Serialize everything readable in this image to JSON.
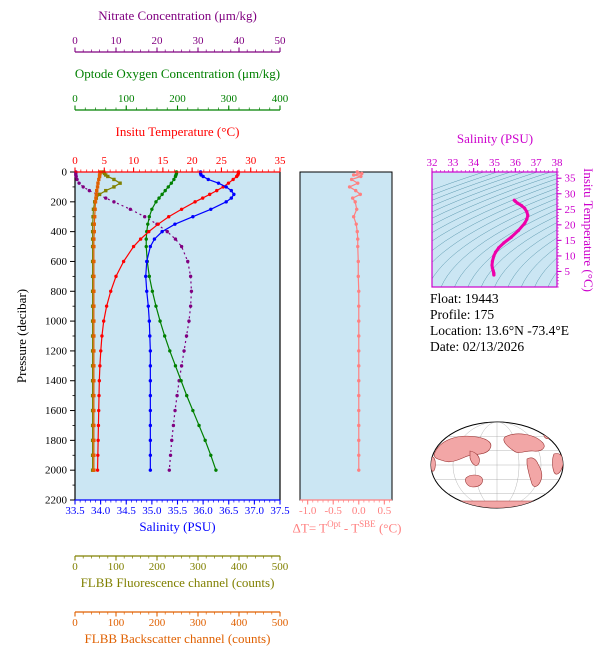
{
  "colors": {
    "plot_bg": "#cbe6f3",
    "contour": "#4d8fa6",
    "land": "#f2a6a6",
    "coast": "#993333"
  },
  "info": {
    "lines": [
      "Float:  19443",
      "Profile:  175",
      "Location:  13.6°N -73.4°E",
      "Date:  02/13/2026"
    ]
  },
  "chart_data": [
    {
      "id": "profiles",
      "type": "line",
      "y_axis": {
        "label": "Pressure (decibar)",
        "range": [
          0,
          2200
        ],
        "ticks": [
          "0",
          "200",
          "400",
          "600",
          "800",
          "1000",
          "1200",
          "1400",
          "1600",
          "1800",
          "2000",
          "2200"
        ]
      },
      "x_axes": [
        {
          "id": "nitrate",
          "label": "Nitrate Concentration (μm/kg)",
          "color": "#800080",
          "range": [
            0,
            50
          ],
          "ticks": [
            "0",
            "10",
            "20",
            "30",
            "40",
            "50"
          ]
        },
        {
          "id": "oxygen",
          "label": "Optode Oxygen Concentration (μm/kg)",
          "color": "#008000",
          "range": [
            0,
            400
          ],
          "ticks": [
            "0",
            "100",
            "200",
            "300",
            "400"
          ]
        },
        {
          "id": "temperature",
          "label": "Insitu Temperature (°C)",
          "color": "#ff0000",
          "range": [
            0,
            35
          ],
          "ticks": [
            "0",
            "5",
            "10",
            "15",
            "20",
            "25",
            "30",
            "35"
          ]
        },
        {
          "id": "salinity",
          "label": "Salinity (PSU)",
          "color": "#0000ff",
          "range": [
            33.5,
            37.5
          ],
          "ticks": [
            "33.5",
            "34.0",
            "34.5",
            "35.0",
            "35.5",
            "36.0",
            "36.5",
            "37.0",
            "37.5"
          ]
        },
        {
          "id": "fluorescence",
          "label": "FLBB Fluorescence channel (counts)",
          "color": "#808000",
          "range": [
            0,
            500
          ],
          "ticks": [
            "0",
            "100",
            "200",
            "300",
            "400",
            "500"
          ]
        },
        {
          "id": "backscatter",
          "label": "FLBB Backscatter channel (counts)",
          "color": "#e06000",
          "range": [
            0,
            500
          ],
          "ticks": [
            "0",
            "100",
            "200",
            "300",
            "400",
            "500"
          ]
        }
      ],
      "pressure_levels": [
        0,
        10,
        20,
        30,
        50,
        75,
        100,
        125,
        150,
        175,
        200,
        250,
        300,
        350,
        400,
        450,
        500,
        600,
        700,
        800,
        900,
        1000,
        1100,
        1200,
        1300,
        1400,
        1500,
        1600,
        1700,
        1800,
        1900,
        2000
      ],
      "series": [
        {
          "axis": "nitrate",
          "color": "#800080",
          "marker": "circle",
          "dash": "2 3",
          "values": [
            0.2,
            0.2,
            0.2,
            0.3,
            0.5,
            1.0,
            2.0,
            3.5,
            5.5,
            7.5,
            9.5,
            13.5,
            17.0,
            20.0,
            22.5,
            24.5,
            26.0,
            27.5,
            28.2,
            28.4,
            28.2,
            27.8,
            27.2,
            26.6,
            26.0,
            25.4,
            24.9,
            24.4,
            24.0,
            23.6,
            23.3,
            23.0
          ]
        },
        {
          "axis": "oxygen",
          "color": "#008000",
          "marker": "circle",
          "values": [
            198,
            198,
            197,
            196,
            193,
            188,
            182,
            176,
            170,
            164,
            158,
            150,
            145,
            142,
            140,
            139,
            139,
            141,
            145,
            151,
            158,
            166,
            175,
            185,
            196,
            207,
            218,
            230,
            242,
            254,
            265,
            275
          ]
        },
        {
          "axis": "fluorescence",
          "color": "#808000",
          "marker": "square",
          "values": [
            70,
            72,
            75,
            80,
            95,
            110,
            95,
            75,
            60,
            52,
            48,
            45,
            44,
            43,
            43,
            43,
            43,
            43,
            43,
            43,
            43,
            43,
            43,
            43,
            43,
            43,
            43,
            43,
            43,
            43,
            43,
            43
          ]
        },
        {
          "axis": "backscatter",
          "color": "#e06000",
          "marker": "square",
          "values": [
            62,
            61,
            60,
            60,
            58,
            56,
            55,
            53,
            52,
            51,
            50,
            49,
            48,
            47,
            47,
            46,
            46,
            46,
            46,
            46,
            46,
            46,
            46,
            46,
            46,
            46,
            46,
            46,
            46,
            46,
            46,
            46
          ]
        },
        {
          "axis": "temperature",
          "color": "#ff0000",
          "marker": "circle",
          "values": [
            27.9,
            27.9,
            27.8,
            27.6,
            27.0,
            26.2,
            25.3,
            24.2,
            23.0,
            21.8,
            20.5,
            18.2,
            16.0,
            14.2,
            12.6,
            11.2,
            10.0,
            8.3,
            7.0,
            6.1,
            5.4,
            4.9,
            4.6,
            4.4,
            4.25,
            4.15,
            4.1,
            4.05,
            4.0,
            3.95,
            3.9,
            3.85
          ]
        },
        {
          "axis": "salinity",
          "color": "#0000ff",
          "marker": "circle",
          "values": [
            35.95,
            35.95,
            35.96,
            36.0,
            36.1,
            36.3,
            36.45,
            36.55,
            36.6,
            36.55,
            36.45,
            36.15,
            35.8,
            35.45,
            35.2,
            35.05,
            34.97,
            34.9,
            34.88,
            34.9,
            34.93,
            34.95,
            34.96,
            34.97,
            34.97,
            34.97,
            34.97,
            34.97,
            34.97,
            34.97,
            34.97,
            34.97
          ]
        }
      ]
    },
    {
      "id": "delta_t",
      "type": "line",
      "x_axis": {
        "label": {
          "pre": "ΔT= T",
          "sup1": "Opt",
          "mid": " - T",
          "sup2": "SBE",
          "post": " (°C)"
        },
        "color": "#ff8080",
        "range": [
          -1.15,
          0.65
        ],
        "ticks": [
          "-1.0",
          "-0.5",
          "0.0",
          "0.5"
        ]
      },
      "series_color": "#ff8080",
      "pressure_levels": [
        0,
        10,
        20,
        30,
        50,
        75,
        100,
        125,
        150,
        175,
        200,
        250,
        300,
        350,
        400,
        450,
        500,
        600,
        700,
        800,
        900,
        1000,
        1100,
        1200,
        1300,
        1400,
        1500,
        1600,
        1700,
        1800,
        1900,
        2000
      ],
      "values": [
        -0.03,
        0.06,
        -0.1,
        0.04,
        -0.14,
        -0.02,
        -0.18,
        -0.06,
        0.03,
        -0.12,
        -0.07,
        -0.04,
        -0.1,
        -0.05,
        -0.03,
        -0.02,
        -0.02,
        -0.01,
        -0.01,
        0.0,
        0.0,
        0.0,
        0.0,
        0.0,
        0.0,
        0.0,
        0.0,
        0.0,
        0.0,
        0.0,
        0.0,
        0.0
      ]
    },
    {
      "id": "ts_diagram",
      "type": "line",
      "x_axis": {
        "label": "Salinity (PSU)",
        "color": "#cc00cc",
        "range": [
          32,
          38
        ],
        "ticks": [
          "32",
          "33",
          "34",
          "35",
          "36",
          "37",
          "38"
        ]
      },
      "y_axis": {
        "label": "Insitu Temperature (°C)",
        "color": "#cc00cc",
        "range": [
          0,
          37
        ],
        "ticks": [
          "5",
          "10",
          "15",
          "20",
          "25",
          "30",
          "35"
        ]
      },
      "curve_color": "#ee00aa",
      "points": [
        [
          35.95,
          27.9
        ],
        [
          36.0,
          27.6
        ],
        [
          36.1,
          27.0
        ],
        [
          36.3,
          26.2
        ],
        [
          36.45,
          25.3
        ],
        [
          36.55,
          24.2
        ],
        [
          36.6,
          23.0
        ],
        [
          36.55,
          21.8
        ],
        [
          36.45,
          20.5
        ],
        [
          36.15,
          18.2
        ],
        [
          35.8,
          16.0
        ],
        [
          35.45,
          14.2
        ],
        [
          35.2,
          12.6
        ],
        [
          35.05,
          11.2
        ],
        [
          34.97,
          10.0
        ],
        [
          34.9,
          8.3
        ],
        [
          34.88,
          7.0
        ],
        [
          34.9,
          6.1
        ],
        [
          34.93,
          5.4
        ],
        [
          34.95,
          4.9
        ],
        [
          34.96,
          4.6
        ],
        [
          34.97,
          4.4
        ],
        [
          34.97,
          4.1
        ],
        [
          34.97,
          3.85
        ]
      ]
    }
  ]
}
